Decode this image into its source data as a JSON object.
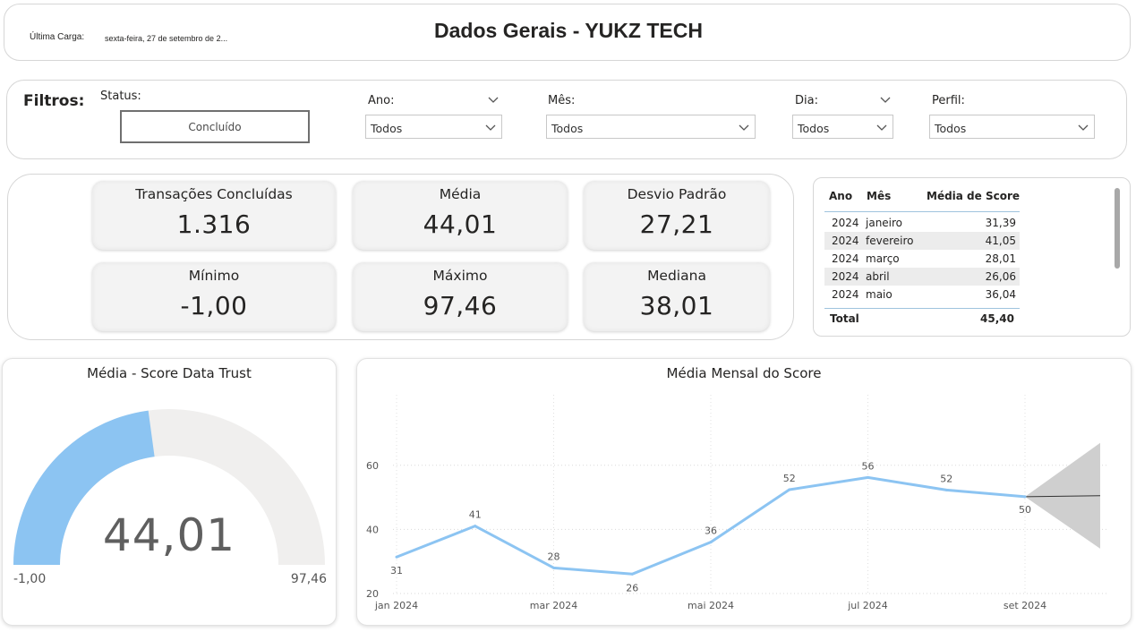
{
  "header": {
    "last_load_label": "Última Carga:",
    "last_load_value": "sexta-feira, 27 de setembro de 2...",
    "title": "Dados Gerais - YUKZ TECH"
  },
  "filters": {
    "title": "Filtros:",
    "status": {
      "label": "Status:",
      "value": "Concluído"
    },
    "ano": {
      "label": "Ano:",
      "value": "Todos"
    },
    "mes": {
      "label": "Mês:",
      "value": "Todos"
    },
    "dia": {
      "label": "Dia:",
      "value": "Todos"
    },
    "perfil": {
      "label": "Perfil:",
      "value": "Todos"
    }
  },
  "kpis": [
    {
      "label": "Transações Concluídas",
      "value": "1.316"
    },
    {
      "label": "Média",
      "value": "44,01"
    },
    {
      "label": "Desvio Padrão",
      "value": "27,21"
    },
    {
      "label": "Mínimo",
      "value": "-1,00"
    },
    {
      "label": "Máximo",
      "value": "97,46"
    },
    {
      "label": "Mediana",
      "value": "38,01"
    }
  ],
  "table": {
    "columns": [
      "Ano",
      "Mês",
      "Média de Score"
    ],
    "rows": [
      [
        "2024",
        "janeiro",
        "31,39"
      ],
      [
        "2024",
        "fevereiro",
        "41,05"
      ],
      [
        "2024",
        "março",
        "28,01"
      ],
      [
        "2024",
        "abril",
        "26,06"
      ],
      [
        "2024",
        "maio",
        "36,04"
      ]
    ],
    "total_label": "Total",
    "total_value": "45,40"
  },
  "gauge": {
    "title": "Média - Score Data Trust",
    "value": 44.01,
    "value_label": "44,01",
    "min": -1.0,
    "max": 97.46,
    "min_label": "-1,00",
    "max_label": "97,46",
    "fill_color": "#8cc4f2",
    "track_color": "#f0efee"
  },
  "chart_data": {
    "type": "line",
    "title": "Média Mensal do Score",
    "x": [
      "jan 2024",
      "fev 2024",
      "mar 2024",
      "abr 2024",
      "mai 2024",
      "jun 2024",
      "jul 2024",
      "ago 2024",
      "set 2024"
    ],
    "x_tick_labels": [
      "jan 2024",
      "mar 2024",
      "mai 2024",
      "jul 2024",
      "set 2024"
    ],
    "series": [
      {
        "values": [
          31.39,
          41.05,
          28.01,
          26.06,
          36.04,
          52.4,
          56.2,
          52.3,
          50.2
        ],
        "data_labels": [
          "31",
          "41",
          "28",
          "26",
          "36",
          "52",
          "56",
          "52",
          "50"
        ]
      }
    ],
    "forecast": {
      "start_value": 50.2,
      "end_value": 50.5,
      "upper_end": 67,
      "lower_end": 34
    },
    "ylim": [
      20,
      70
    ],
    "y_ticks": [
      20,
      40,
      60
    ],
    "grid": true,
    "line_color": "#8cc4f2",
    "forecast_band_color": "#cfcfcf"
  }
}
